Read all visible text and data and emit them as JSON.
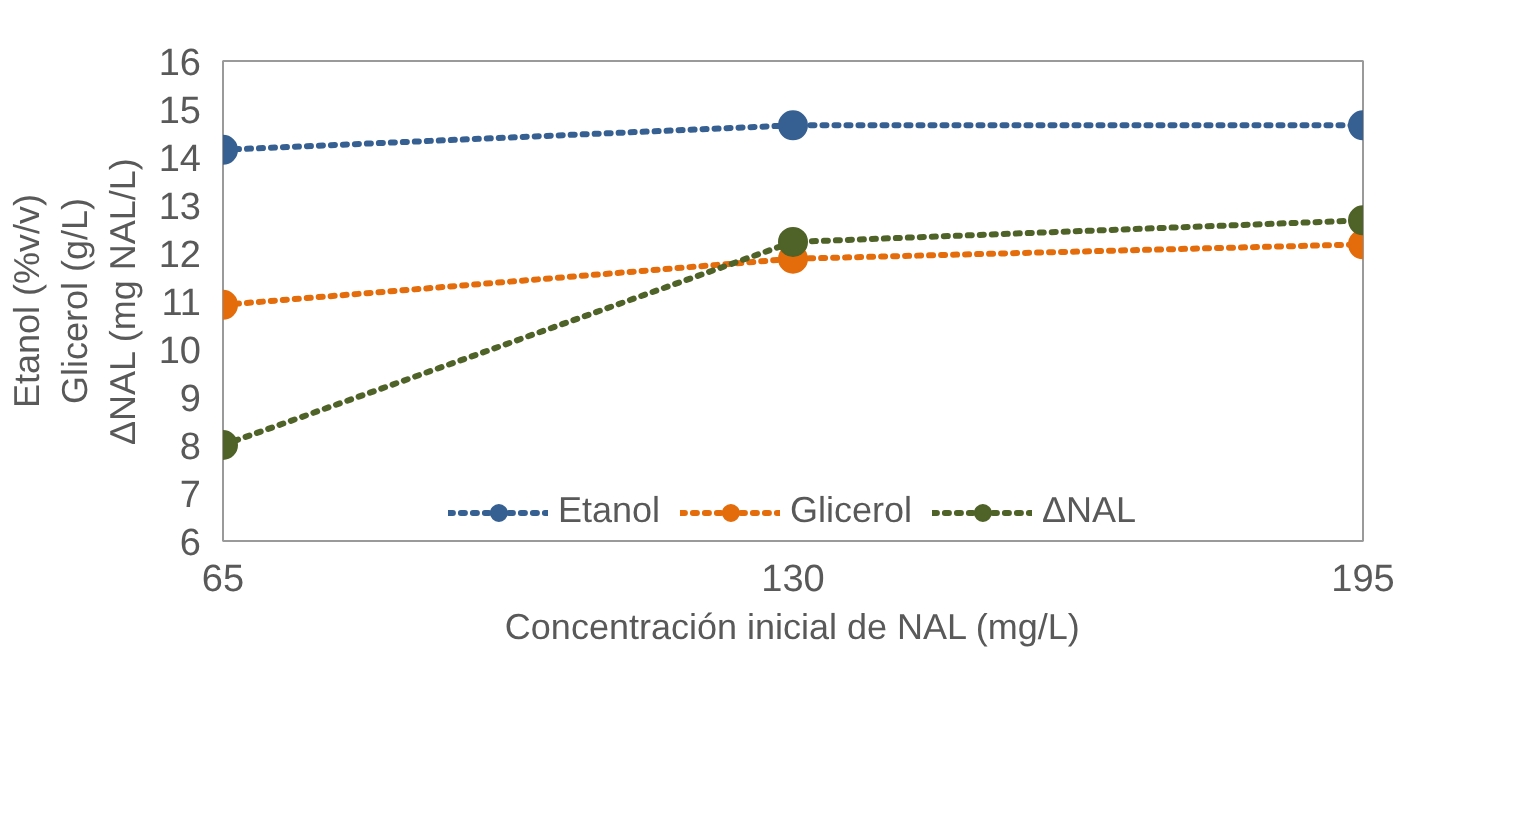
{
  "chart_data": {
    "type": "line",
    "xlabel": "Concentración inicial de NAL (mg/L)",
    "ylabel": "Etanol (%v/v)\nGlicerol (g/L)\nΔNAL (mg NAL/L)",
    "x": [
      65,
      130,
      195
    ],
    "xlim": [
      65,
      195
    ],
    "xticks": [
      65,
      130,
      195
    ],
    "ylim": [
      6,
      16
    ],
    "yticks": [
      6,
      7,
      8,
      9,
      10,
      11,
      12,
      13,
      14,
      15,
      16
    ],
    "series": [
      {
        "name": "Etanol",
        "color": "#376092",
        "values": [
          14.15,
          14.66,
          14.66
        ]
      },
      {
        "name": "Glicerol",
        "color": "#e46c0a",
        "values": [
          10.92,
          11.88,
          12.18
        ]
      },
      {
        "name": "ΔNAL",
        "color": "#4f6228",
        "values": [
          8.0,
          12.23,
          12.68
        ]
      }
    ],
    "marker": "circle",
    "line_style": "dotted",
    "grid": false,
    "legend": "bottom"
  }
}
